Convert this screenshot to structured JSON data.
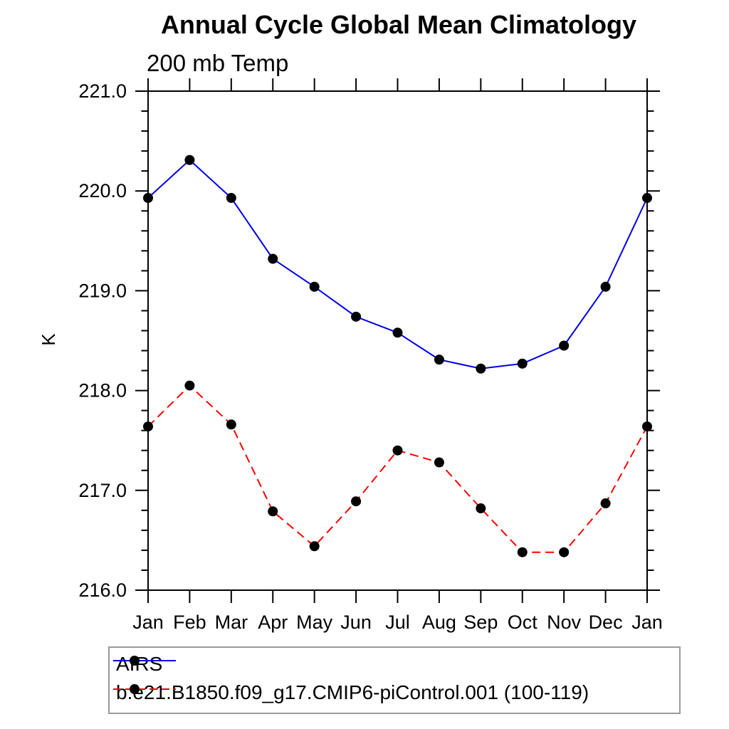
{
  "chart_data": {
    "type": "line",
    "title": "Annual Cycle Global Mean Climatology",
    "subtitle": "200 mb Temp",
    "ylabel": "K",
    "xlabel": "",
    "categories": [
      "Jan",
      "Feb",
      "Mar",
      "Apr",
      "May",
      "Jun",
      "Jul",
      "Aug",
      "Sep",
      "Oct",
      "Nov",
      "Dec",
      "Jan"
    ],
    "ylim": [
      216.0,
      221.0
    ],
    "ytick_interval": 1.0,
    "yminor_interval": 0.2,
    "ytick_labels": [
      "216.0",
      "217.0",
      "218.0",
      "219.0",
      "220.0",
      "221.0"
    ],
    "grid": false,
    "legend_position": "below-left",
    "axis_color": "#000000",
    "marker": "filled-circle",
    "marker_color": "#000000",
    "series": [
      {
        "name": "AIRS",
        "color": "#0000ee",
        "line_style": "solid",
        "values": [
          219.93,
          220.31,
          219.93,
          219.32,
          219.04,
          218.74,
          218.58,
          218.31,
          218.22,
          218.27,
          218.45,
          219.04,
          219.93
        ]
      },
      {
        "name": "b.e21.B1850.f09_g17.CMIP6-piControl.001 (100-119)",
        "color": "#ff0000",
        "line_style": "dashed",
        "values": [
          217.64,
          218.05,
          217.66,
          216.79,
          216.44,
          216.89,
          217.4,
          217.28,
          216.82,
          216.38,
          216.38,
          216.87,
          217.64
        ]
      }
    ]
  }
}
